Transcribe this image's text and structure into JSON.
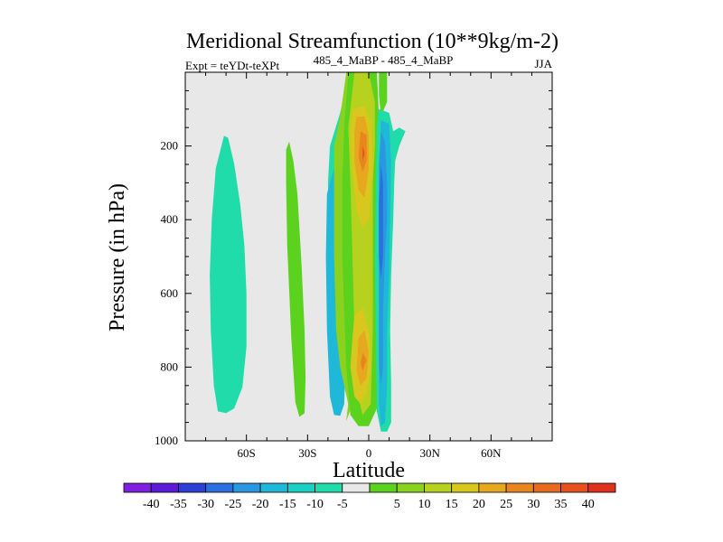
{
  "chart_data": {
    "type": "contour",
    "title": "Meridional Streamfunction (10**9kg/m-2)",
    "subtitle_left": "Expt = teYDt-teXPt",
    "subtitle_center": "485_4_MaBP - 485_4_MaBP",
    "subtitle_right": "JJA",
    "xlabel": "Latitude",
    "ylabel": "Pressure (in hPa)",
    "xlim": [
      -90,
      90
    ],
    "ylim": [
      0,
      1000
    ],
    "y_inverted": true,
    "xticks": [
      {
        "value": -60,
        "label": "60S"
      },
      {
        "value": -30,
        "label": "30S"
      },
      {
        "value": 0,
        "label": "0"
      },
      {
        "value": 30,
        "label": "30N"
      },
      {
        "value": 60,
        "label": "60N"
      }
    ],
    "yticks": [
      {
        "value": 200,
        "label": "200"
      },
      {
        "value": 400,
        "label": "400"
      },
      {
        "value": 600,
        "label": "600"
      },
      {
        "value": 800,
        "label": "800"
      },
      {
        "value": 1000,
        "label": "1000"
      }
    ],
    "background_color": "#e8e8e8",
    "colorbar": {
      "colors": [
        "#7f1fe0",
        "#5c1ad9",
        "#2e3fd6",
        "#2b6fe0",
        "#2a98e0",
        "#20b8d8",
        "#1ad0c2",
        "#20dcaa",
        "#e8e8e8",
        "#5ad21e",
        "#8ad21e",
        "#b6d21e",
        "#d8c81e",
        "#e6a81e",
        "#e8861e",
        "#e86a1e",
        "#e8501e",
        "#e0301e"
      ],
      "labels": [
        "-40",
        "-35",
        "-30",
        "-25",
        "-20",
        "-15",
        "-10",
        "-5",
        "5",
        "10",
        "15",
        "20",
        "25",
        "30",
        "35",
        "40"
      ]
    },
    "regions": [
      {
        "color": "#20dcaa",
        "points": [
          [
            -70,
            925
          ],
          [
            -66,
            912
          ],
          [
            -62,
            855
          ],
          [
            -60,
            745
          ],
          [
            -60,
            600
          ],
          [
            -61,
            470
          ],
          [
            -63,
            360
          ],
          [
            -66,
            248
          ],
          [
            -69,
            178
          ],
          [
            -71,
            172
          ],
          [
            -75,
            260
          ],
          [
            -77,
            400
          ],
          [
            -78,
            550
          ],
          [
            -77.5,
            700
          ],
          [
            -76,
            850
          ],
          [
            -74,
            920
          ]
        ]
      },
      {
        "color": "#5ad21e",
        "points": [
          [
            -39,
            188
          ],
          [
            -37,
            240
          ],
          [
            -35,
            330
          ],
          [
            -33,
            520
          ],
          [
            -31.5,
            700
          ],
          [
            -31,
            830
          ],
          [
            -31.5,
            925
          ],
          [
            -34,
            935
          ],
          [
            -36,
            895
          ],
          [
            -38,
            720
          ],
          [
            -40,
            470
          ],
          [
            -40.5,
            300
          ],
          [
            -40.5,
            210
          ]
        ]
      },
      {
        "color": "#20dcaa",
        "points": [
          [
            -14,
            110
          ],
          [
            -11,
            40
          ],
          [
            -10,
            0
          ],
          [
            -5,
            0
          ],
          [
            -5,
            100
          ],
          [
            -5,
            300
          ],
          [
            -6,
            500
          ],
          [
            -6,
            700
          ],
          [
            -8,
            900
          ],
          [
            -11,
            945
          ],
          [
            -10,
            900
          ],
          [
            -14,
            800
          ],
          [
            -17,
            700
          ],
          [
            -19,
            500
          ],
          [
            -20,
            300
          ],
          [
            -19,
            200
          ]
        ]
      },
      {
        "color": "#20b8d8",
        "points": [
          [
            -17,
            260
          ],
          [
            -14,
            300
          ],
          [
            -12,
            400
          ],
          [
            -11.5,
            600
          ],
          [
            -11.5,
            800
          ],
          [
            -12,
            900
          ],
          [
            -14,
            932
          ],
          [
            -17,
            930
          ],
          [
            -19,
            880
          ],
          [
            -20.5,
            700
          ],
          [
            -21,
            500
          ],
          [
            -20.5,
            330
          ]
        ]
      },
      {
        "color": "#8ad21e",
        "points": [
          [
            -11,
            0
          ],
          [
            -5,
            0
          ],
          [
            -5,
            100
          ],
          [
            -5,
            300
          ],
          [
            -6,
            500
          ],
          [
            -6,
            700
          ],
          [
            -8,
            900
          ],
          [
            -11,
            945
          ],
          [
            -10,
            900
          ],
          [
            -14,
            800
          ],
          [
            -16,
            700
          ],
          [
            -17,
            500
          ],
          [
            -17,
            200
          ],
          [
            -14,
            120
          ]
        ]
      },
      {
        "color": "#5ad21e",
        "points": [
          [
            -10,
            0
          ],
          [
            4,
            0
          ],
          [
            5,
            120
          ],
          [
            5,
            300
          ],
          [
            5,
            500
          ],
          [
            5,
            700
          ],
          [
            5,
            900
          ],
          [
            0,
            960
          ],
          [
            -5,
            960
          ],
          [
            -9,
            930
          ],
          [
            -11,
            800
          ],
          [
            -12,
            650
          ],
          [
            -13,
            500
          ],
          [
            -13,
            300
          ],
          [
            -12,
            150
          ]
        ]
      },
      {
        "color": "#b6d21e",
        "points": [
          [
            -7,
            0
          ],
          [
            0,
            0
          ],
          [
            3,
            80
          ],
          [
            3,
            200
          ],
          [
            2,
            300
          ],
          [
            2,
            500
          ],
          [
            2,
            700
          ],
          [
            1,
            900
          ],
          [
            -3,
            930
          ],
          [
            -6,
            860
          ],
          [
            -7,
            700
          ],
          [
            -8,
            500
          ],
          [
            -9,
            300
          ],
          [
            -10,
            150
          ]
        ]
      },
      {
        "color": "#d8c81e",
        "points": [
          [
            -8,
            100
          ],
          [
            -2,
            90
          ],
          [
            1,
            140
          ],
          [
            2,
            250
          ],
          [
            1,
            330
          ],
          [
            0,
            400
          ],
          [
            -3,
            420
          ],
          [
            -6,
            370
          ],
          [
            -8,
            270
          ],
          [
            -9,
            180
          ]
        ]
      },
      {
        "color": "#e6a81e",
        "points": [
          [
            -6,
            120
          ],
          [
            -2,
            120
          ],
          [
            0,
            170
          ],
          [
            0,
            260
          ],
          [
            -2,
            340
          ],
          [
            -5,
            320
          ],
          [
            -7,
            240
          ],
          [
            -7,
            160
          ]
        ]
      },
      {
        "color": "#e8861e",
        "points": [
          [
            -4,
            160
          ],
          [
            -1,
            170
          ],
          [
            -1,
            240
          ],
          [
            -3,
            270
          ],
          [
            -5,
            230
          ]
        ]
      },
      {
        "color": "#e8501e",
        "points": [
          [
            -3,
            200
          ],
          [
            -2,
            220
          ],
          [
            -3,
            240
          ]
        ]
      },
      {
        "color": "#d8c81e",
        "points": [
          [
            -7,
            660
          ],
          [
            -3,
            640
          ],
          [
            0,
            700
          ],
          [
            1,
            800
          ],
          [
            -1,
            870
          ],
          [
            -4,
            900
          ],
          [
            -7,
            880
          ],
          [
            -9,
            800
          ],
          [
            -8,
            720
          ]
        ]
      },
      {
        "color": "#e6a81e",
        "points": [
          [
            -5,
            720
          ],
          [
            -2,
            700
          ],
          [
            0,
            760
          ],
          [
            -1,
            830
          ],
          [
            -4,
            850
          ],
          [
            -6,
            810
          ]
        ]
      },
      {
        "color": "#e8861e",
        "points": [
          [
            -3,
            760
          ],
          [
            -1,
            780
          ],
          [
            -3,
            810
          ],
          [
            -4,
            790
          ]
        ]
      },
      {
        "color": "#5ad21e",
        "points": [
          [
            5,
            0
          ],
          [
            9,
            0
          ],
          [
            9,
            80
          ],
          [
            6,
            120
          ],
          [
            5,
            60
          ]
        ]
      },
      {
        "color": "#20dcaa",
        "points": [
          [
            5,
            100
          ],
          [
            10,
            110
          ],
          [
            12,
            160
          ],
          [
            15,
            150
          ],
          [
            18,
            160
          ],
          [
            15,
            200
          ],
          [
            13,
            240
          ],
          [
            12.5,
            300
          ],
          [
            12,
            400
          ],
          [
            11,
            550
          ],
          [
            10.5,
            700
          ],
          [
            11,
            850
          ],
          [
            11,
            950
          ],
          [
            9,
            975
          ],
          [
            6,
            975
          ],
          [
            4,
            920
          ],
          [
            3.5,
            700
          ],
          [
            3,
            500
          ],
          [
            3.5,
            300
          ],
          [
            4,
            150
          ]
        ]
      },
      {
        "color": "#20b8d8",
        "points": [
          [
            6,
            130
          ],
          [
            10,
            140
          ],
          [
            11,
            240
          ],
          [
            10.5,
            400
          ],
          [
            10,
            550
          ],
          [
            9,
            700
          ],
          [
            9,
            850
          ],
          [
            8,
            950
          ],
          [
            6,
            960
          ],
          [
            5,
            900
          ],
          [
            5,
            700
          ],
          [
            5,
            500
          ],
          [
            5,
            300
          ]
        ]
      },
      {
        "color": "#2a98e0",
        "points": [
          [
            6,
            160
          ],
          [
            8,
            190
          ],
          [
            9,
            300
          ],
          [
            9,
            400
          ],
          [
            8,
            500
          ],
          [
            7,
            650
          ],
          [
            7,
            800
          ],
          [
            6,
            850
          ],
          [
            5,
            800
          ],
          [
            5,
            600
          ],
          [
            5,
            400
          ],
          [
            5,
            250
          ]
        ]
      },
      {
        "color": "#2b6fe0",
        "points": [
          [
            6,
            250
          ],
          [
            7,
            300
          ],
          [
            7,
            500
          ],
          [
            6,
            560
          ],
          [
            5,
            500
          ],
          [
            5,
            350
          ]
        ]
      }
    ]
  }
}
